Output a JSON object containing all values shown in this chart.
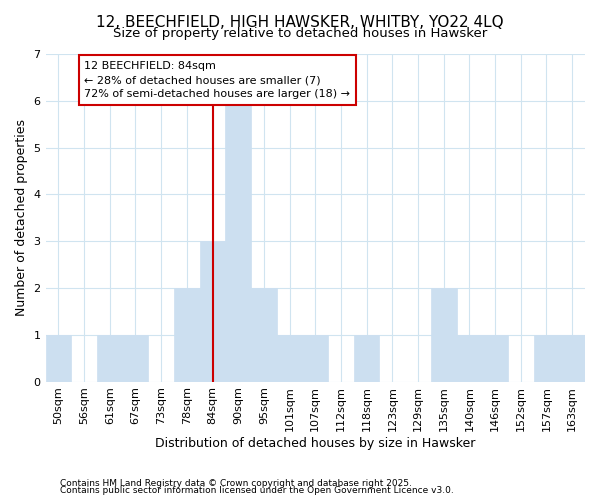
{
  "title1": "12, BEECHFIELD, HIGH HAWSKER, WHITBY, YO22 4LQ",
  "title2": "Size of property relative to detached houses in Hawsker",
  "xlabel": "Distribution of detached houses by size in Hawsker",
  "ylabel": "Number of detached properties",
  "footnote1": "Contains HM Land Registry data © Crown copyright and database right 2025.",
  "footnote2": "Contains public sector information licensed under the Open Government Licence v3.0.",
  "categories": [
    "50sqm",
    "56sqm",
    "61sqm",
    "67sqm",
    "73sqm",
    "78sqm",
    "84sqm",
    "90sqm",
    "95sqm",
    "101sqm",
    "107sqm",
    "112sqm",
    "118sqm",
    "123sqm",
    "129sqm",
    "135sqm",
    "140sqm",
    "146sqm",
    "152sqm",
    "157sqm",
    "163sqm"
  ],
  "values": [
    1,
    0,
    1,
    1,
    0,
    2,
    3,
    6,
    2,
    1,
    1,
    0,
    1,
    0,
    0,
    2,
    1,
    1,
    0,
    1,
    1
  ],
  "highlight_index": 6,
  "annotation_title": "12 BEECHFIELD: 84sqm",
  "annotation_line1": "← 28% of detached houses are smaller (7)",
  "annotation_line2": "72% of semi-detached houses are larger (18) →",
  "bar_color": "#ccdff0",
  "highlight_line_color": "#cc0000",
  "annotation_box_edge_color": "#cc0000",
  "bg_color": "#ffffff",
  "grid_color": "#d0e4f0",
  "ylim": [
    0,
    7
  ],
  "yticks": [
    0,
    1,
    2,
    3,
    4,
    5,
    6,
    7
  ],
  "title1_fontsize": 11,
  "title2_fontsize": 9.5,
  "xlabel_fontsize": 9,
  "ylabel_fontsize": 9,
  "tick_fontsize": 8,
  "annotation_fontsize": 8,
  "footnote_fontsize": 6.5
}
